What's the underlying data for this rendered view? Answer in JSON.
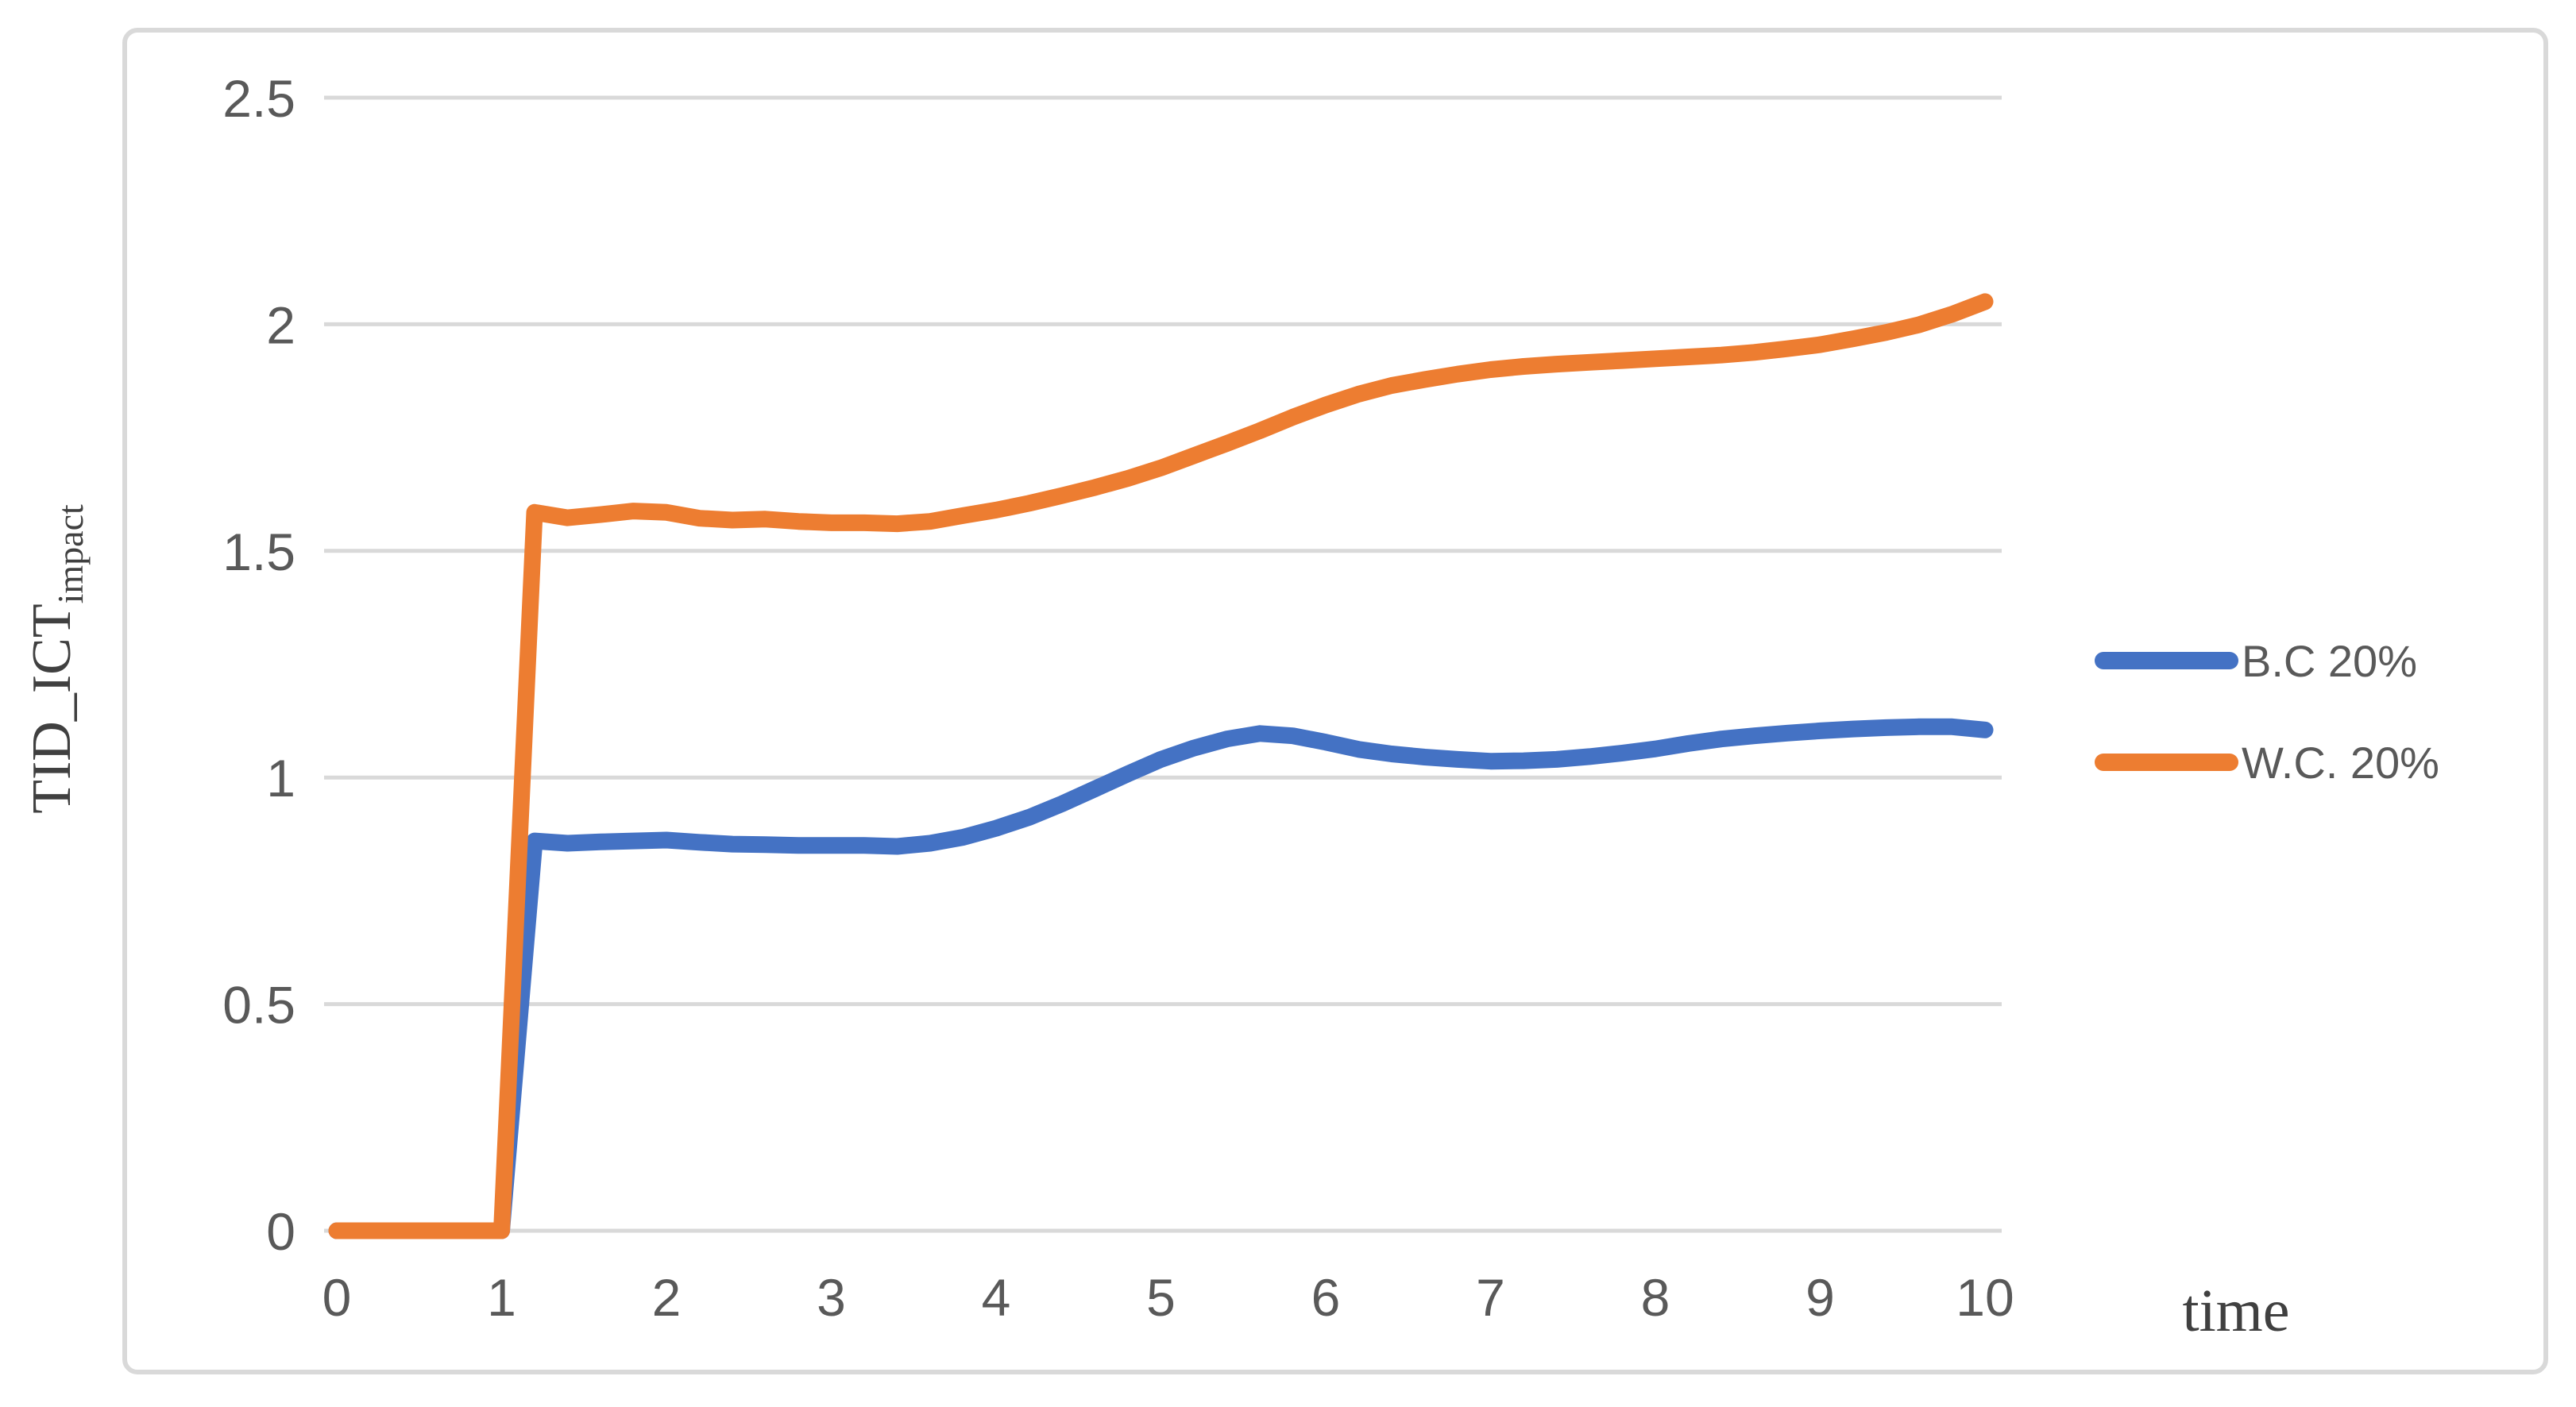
{
  "chart_data": {
    "type": "line",
    "title": "",
    "xlabel": "time",
    "ylabel": "TID_ICT",
    "ylabel_subscript": "impact",
    "xlim": [
      0,
      10
    ],
    "ylim": [
      0,
      2.5
    ],
    "x_ticks": [
      0,
      1,
      2,
      3,
      4,
      5,
      6,
      7,
      8,
      9,
      10
    ],
    "y_ticks": [
      0,
      0.5,
      1,
      1.5,
      2,
      2.5
    ],
    "grid": "horizontal",
    "legend_position": "right",
    "series": [
      {
        "name": "B.C 20%",
        "color": "#4472C4",
        "x": [
          0,
          1,
          1.2,
          1.4,
          1.6,
          1.8,
          2,
          2.2,
          2.4,
          2.6,
          2.8,
          3,
          3.2,
          3.4,
          3.6,
          3.8,
          4,
          4.2,
          4.4,
          4.6,
          4.8,
          5,
          5.2,
          5.4,
          5.6,
          5.8,
          6,
          6.2,
          6.4,
          6.6,
          6.8,
          7,
          7.2,
          7.4,
          7.6,
          7.8,
          8,
          8.2,
          8.4,
          8.6,
          8.8,
          9,
          9.2,
          9.4,
          9.6,
          9.8,
          10
        ],
        "y": [
          0,
          0,
          0.86,
          0.855,
          0.858,
          0.86,
          0.862,
          0.857,
          0.853,
          0.852,
          0.85,
          0.85,
          0.85,
          0.848,
          0.855,
          0.868,
          0.888,
          0.912,
          0.942,
          0.975,
          1.008,
          1.04,
          1.065,
          1.085,
          1.097,
          1.092,
          1.078,
          1.062,
          1.052,
          1.045,
          1.04,
          1.036,
          1.037,
          1.04,
          1.046,
          1.054,
          1.063,
          1.075,
          1.085,
          1.092,
          1.098,
          1.103,
          1.107,
          1.11,
          1.112,
          1.112,
          1.105
        ]
      },
      {
        "name": "W.C. 20%",
        "color": "#ED7D31",
        "x": [
          0,
          1,
          1.2,
          1.4,
          1.6,
          1.8,
          2,
          2.2,
          2.4,
          2.6,
          2.8,
          3,
          3.2,
          3.4,
          3.6,
          3.8,
          4,
          4.2,
          4.4,
          4.6,
          4.8,
          5,
          5.2,
          5.4,
          5.6,
          5.8,
          6,
          6.2,
          6.4,
          6.6,
          6.8,
          7,
          7.2,
          7.4,
          7.6,
          7.8,
          8,
          8.2,
          8.4,
          8.6,
          8.8,
          9,
          9.2,
          9.4,
          9.6,
          9.8,
          10
        ],
        "y": [
          0,
          0,
          1.585,
          1.573,
          1.58,
          1.588,
          1.585,
          1.572,
          1.568,
          1.57,
          1.565,
          1.562,
          1.562,
          1.56,
          1.565,
          1.578,
          1.59,
          1.605,
          1.622,
          1.64,
          1.66,
          1.683,
          1.71,
          1.737,
          1.765,
          1.795,
          1.822,
          1.846,
          1.865,
          1.878,
          1.89,
          1.9,
          1.907,
          1.912,
          1.916,
          1.92,
          1.924,
          1.928,
          1.932,
          1.938,
          1.946,
          1.955,
          1.968,
          1.982,
          1.999,
          2.022,
          2.05
        ]
      }
    ]
  },
  "legend": {
    "items": [
      {
        "label": "B.C 20%",
        "color": "#4472C4"
      },
      {
        "label": "W.C. 20%",
        "color": "#ED7D31"
      }
    ]
  },
  "styles": {
    "background": "#FFFFFF",
    "border_color": "#D9D9D9",
    "grid_color": "#D9D9D9",
    "tick_color": "#595959",
    "axis_title_color": "#404040"
  }
}
